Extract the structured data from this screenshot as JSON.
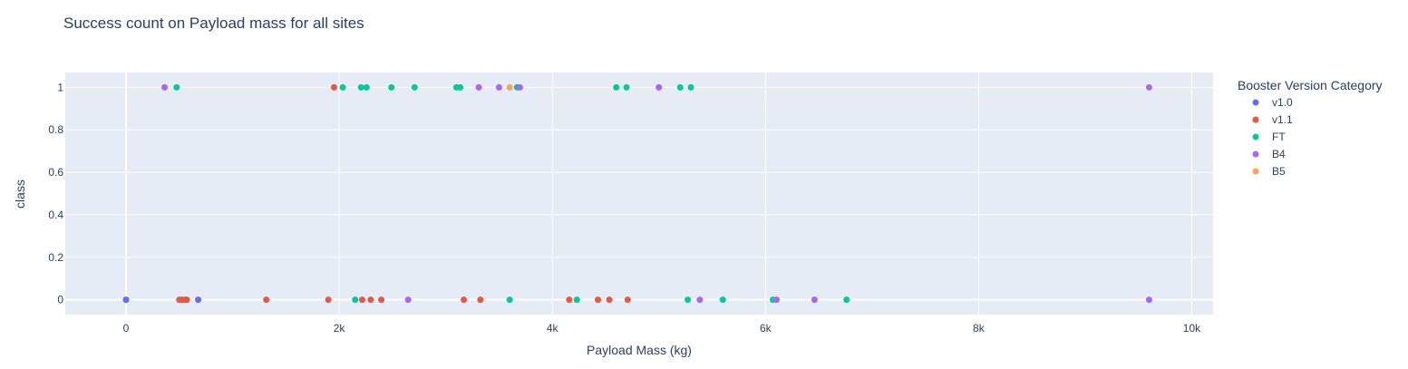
{
  "chart_data": {
    "type": "scatter",
    "title": "Success count on Payload mass for all sites",
    "xlabel": "Payload Mass (kg)",
    "ylabel": "class",
    "xlim": [
      -570,
      10200
    ],
    "ylim": [
      -0.07,
      1.07
    ],
    "x_ticks": [
      0,
      2000,
      4000,
      6000,
      8000,
      10000
    ],
    "x_tick_labels": [
      "0",
      "2k",
      "4k",
      "6k",
      "8k",
      "10k"
    ],
    "y_ticks": [
      0,
      0.2,
      0.4,
      0.6,
      0.8,
      1
    ],
    "y_tick_labels": [
      "0",
      "0.2",
      "0.4",
      "0.6",
      "0.8",
      "1"
    ],
    "grid": true,
    "plot_background": "#e5ecf6",
    "legend_title": "Booster Version Category",
    "legend_position": "right",
    "series": [
      {
        "name": "v1.0",
        "color": "#636efa",
        "x": [
          0,
          0,
          677
        ],
        "y": [
          0,
          0,
          0
        ]
      },
      {
        "name": "v1.1",
        "color": "#ef553b",
        "x": [
          500,
          525,
          553,
          570,
          1316,
          1898,
          1952,
          2216,
          2296,
          2395,
          3170,
          3325,
          4159,
          4428,
          4535,
          4707
        ],
        "y": [
          0,
          0,
          0,
          0,
          0,
          0,
          1,
          0,
          0,
          0,
          0,
          0,
          0,
          0,
          0,
          0
        ]
      },
      {
        "name": "FT",
        "color": "#00cc96",
        "x": [
          475,
          2034,
          2205,
          2257,
          2490,
          2708,
          3100,
          3136,
          3669,
          4600,
          4696,
          5200,
          5300,
          2150,
          3600,
          4230,
          5271,
          5600,
          6070,
          6761
        ],
        "y": [
          1,
          1,
          1,
          1,
          1,
          1,
          1,
          1,
          1,
          1,
          1,
          1,
          1,
          0,
          0,
          0,
          0,
          0,
          0,
          0
        ]
      },
      {
        "name": "B4",
        "color": "#ab63fa",
        "x": [
          362,
          3310,
          3500,
          3696,
          5000,
          9600,
          2647,
          5384,
          6104,
          6460,
          9600
        ],
        "y": [
          1,
          1,
          1,
          1,
          1,
          1,
          0,
          0,
          0,
          0,
          0
        ]
      },
      {
        "name": "B5",
        "color": "#ffa15a",
        "x": [
          3600
        ],
        "y": [
          1
        ]
      }
    ]
  }
}
